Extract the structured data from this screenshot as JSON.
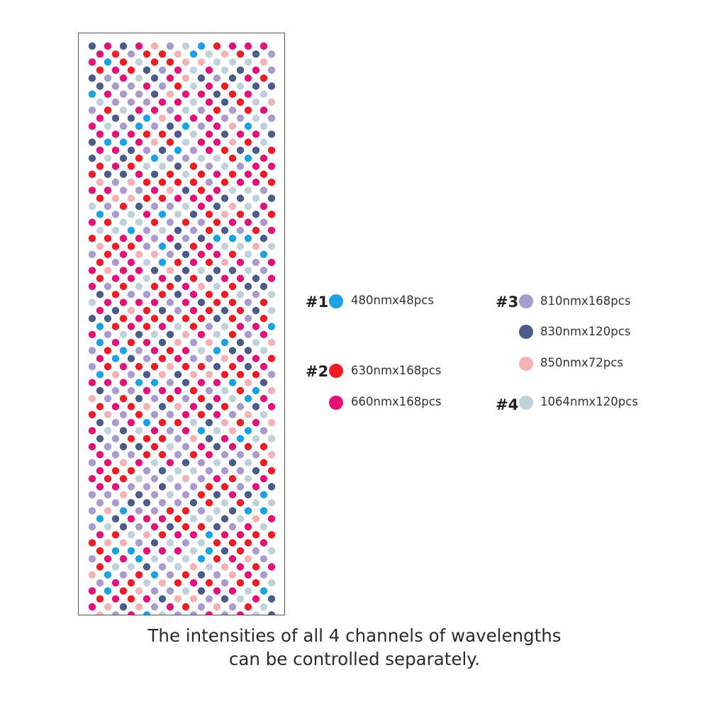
{
  "colors": {
    "c480": "#1aa1e6",
    "c630": "#ee1c25",
    "c660": "#e3127a",
    "c810": "#a99bd0",
    "c830": "#4a5b8c",
    "c850": "#f3b3b6",
    "c1064": "#bfd2dc"
  },
  "legend": [
    {
      "channel": "#1",
      "items": [
        {
          "label": "480nmx48pcs",
          "color": "c480"
        }
      ]
    },
    {
      "channel": "#2",
      "items": [
        {
          "label": "630nmx168pcs",
          "color": "c630"
        },
        {
          "label": "660nmx168pcs",
          "color": "c660"
        }
      ]
    },
    {
      "channel": "#3",
      "items": [
        {
          "label": "810nmx168pcs",
          "color": "c810"
        },
        {
          "label": "830nmx120pcs",
          "color": "c830"
        },
        {
          "label": "850nmx72pcs",
          "color": "c850"
        }
      ]
    },
    {
      "channel": "#4",
      "items": [
        {
          "label": "1064nmx120pcs",
          "color": "c1064"
        }
      ]
    }
  ],
  "caption": {
    "line1": "The intensities of all 4 channels of wavelengths",
    "line2": "can be controlled separately."
  }
}
